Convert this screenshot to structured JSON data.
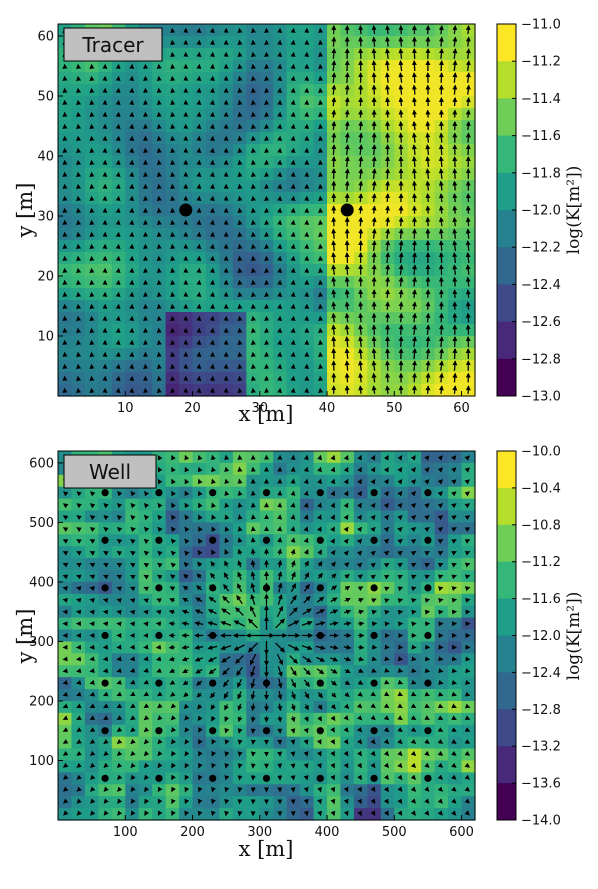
{
  "chart_data": [
    {
      "type": "heatmap",
      "title": "Tracer",
      "xlabel": "x [m]",
      "ylabel": "y [m]",
      "colorbar_label": "log(K[m²])",
      "xlim": [
        0,
        62
      ],
      "ylim": [
        0,
        62
      ],
      "x_ticks": [
        10,
        20,
        30,
        40,
        50,
        60
      ],
      "y_ticks": [
        10,
        20,
        30,
        40,
        50,
        60
      ],
      "colorbar_ticks": [
        -11.0,
        -11.2,
        -11.4,
        -11.6,
        -11.8,
        -12.0,
        -12.2,
        -12.4,
        -12.6,
        -12.8,
        -13.0
      ],
      "color_range": [
        -13.0,
        -11.0
      ],
      "colormap": [
        "#440154",
        "#482878",
        "#3e4989",
        "#31688e",
        "#26828e",
        "#1f9e89",
        "#35b779",
        "#6ece58",
        "#b5de2b",
        "#fde725"
      ],
      "grid_size": [
        31,
        31
      ],
      "points": [
        [
          19,
          31
        ],
        [
          43,
          31
        ]
      ],
      "vector_field": "quiver arrows showing flow direction; strong northward flow for x > 40 m, weak elsewhere"
    },
    {
      "type": "heatmap",
      "title": "Well",
      "xlabel": "x [m]",
      "ylabel": "y [m]",
      "colorbar_label": "log(K[m²])",
      "xlim": [
        0,
        620
      ],
      "ylim": [
        0,
        620
      ],
      "x_ticks": [
        100,
        200,
        300,
        400,
        500,
        600
      ],
      "y_ticks": [
        100,
        200,
        300,
        400,
        500,
        600
      ],
      "colorbar_ticks": [
        -10.0,
        -10.4,
        -10.8,
        -11.2,
        -11.6,
        -12.0,
        -12.4,
        -12.8,
        -13.2,
        -13.6,
        -14.0
      ],
      "color_range": [
        -14.0,
        -10.0
      ],
      "colormap": [
        "#440154",
        "#482878",
        "#3e4989",
        "#31688e",
        "#26828e",
        "#1f9e89",
        "#35b779",
        "#6ece58",
        "#b5de2b",
        "#fde725"
      ],
      "grid_size": [
        31,
        31
      ],
      "points": [
        [
          70,
          550
        ],
        [
          150,
          550
        ],
        [
          230,
          550
        ],
        [
          310,
          550
        ],
        [
          390,
          550
        ],
        [
          470,
          550
        ],
        [
          550,
          550
        ],
        [
          70,
          470
        ],
        [
          150,
          470
        ],
        [
          230,
          470
        ],
        [
          310,
          470
        ],
        [
          390,
          470
        ],
        [
          470,
          470
        ],
        [
          550,
          470
        ],
        [
          70,
          390
        ],
        [
          150,
          390
        ],
        [
          230,
          390
        ],
        [
          310,
          390
        ],
        [
          390,
          390
        ],
        [
          470,
          390
        ],
        [
          550,
          390
        ],
        [
          70,
          310
        ],
        [
          150,
          310
        ],
        [
          230,
          310
        ],
        [
          390,
          310
        ],
        [
          470,
          310
        ],
        [
          550,
          310
        ],
        [
          70,
          230
        ],
        [
          150,
          230
        ],
        [
          230,
          230
        ],
        [
          310,
          230
        ],
        [
          390,
          230
        ],
        [
          470,
          230
        ],
        [
          550,
          230
        ],
        [
          70,
          150
        ],
        [
          150,
          150
        ],
        [
          230,
          150
        ],
        [
          310,
          150
        ],
        [
          390,
          150
        ],
        [
          470,
          150
        ],
        [
          550,
          150
        ],
        [
          70,
          70
        ],
        [
          150,
          70
        ],
        [
          230,
          70
        ],
        [
          310,
          70
        ],
        [
          390,
          70
        ],
        [
          470,
          70
        ],
        [
          550,
          70
        ]
      ],
      "vector_field": "quiver arrows radiating outward from injection well near (310, 310)"
    }
  ]
}
